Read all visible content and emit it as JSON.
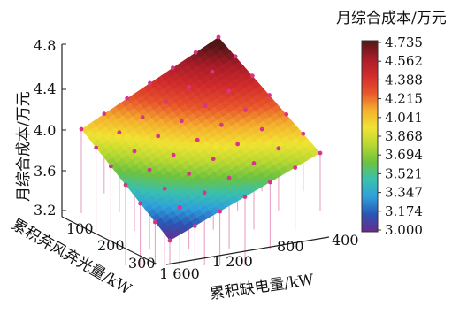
{
  "chart_data": {
    "type": "surface3d",
    "zlabel": "月综合成本/万元",
    "xlabel": "累积缺电量/kW",
    "ylabel": "累积弃风弃光量/kW",
    "colorbar_title": "月综合成本/万元",
    "z_ticks": [
      "3.2",
      "3.6",
      "4.0",
      "4.4",
      "4.8"
    ],
    "x_ticks": [
      "400",
      "800",
      "1 200",
      "1 600"
    ],
    "y_ticks": [
      "100",
      "200",
      "300"
    ],
    "colorbar_ticks": [
      "4.735",
      "4.562",
      "4.388",
      "4.215",
      "4.041",
      "3.868",
      "3.694",
      "3.521",
      "3.347",
      "3.174",
      "3.000"
    ],
    "zlim": [
      3.0,
      4.8
    ],
    "colorscale": {
      "min": 3.0,
      "max": 4.735,
      "stops": [
        "#6a2a8c",
        "#2b55b5",
        "#2f9fdc",
        "#39c0b0",
        "#6cc240",
        "#b8d832",
        "#f1e332",
        "#f4b02e",
        "#e8552b",
        "#d12b2c",
        "#a71c28",
        "#501616"
      ]
    },
    "surface_z_corners": {
      "back": 4.8,
      "right": 3.87,
      "front": 3.0,
      "left": 4.0
    },
    "point_color": "#d8348a",
    "grid": false
  }
}
